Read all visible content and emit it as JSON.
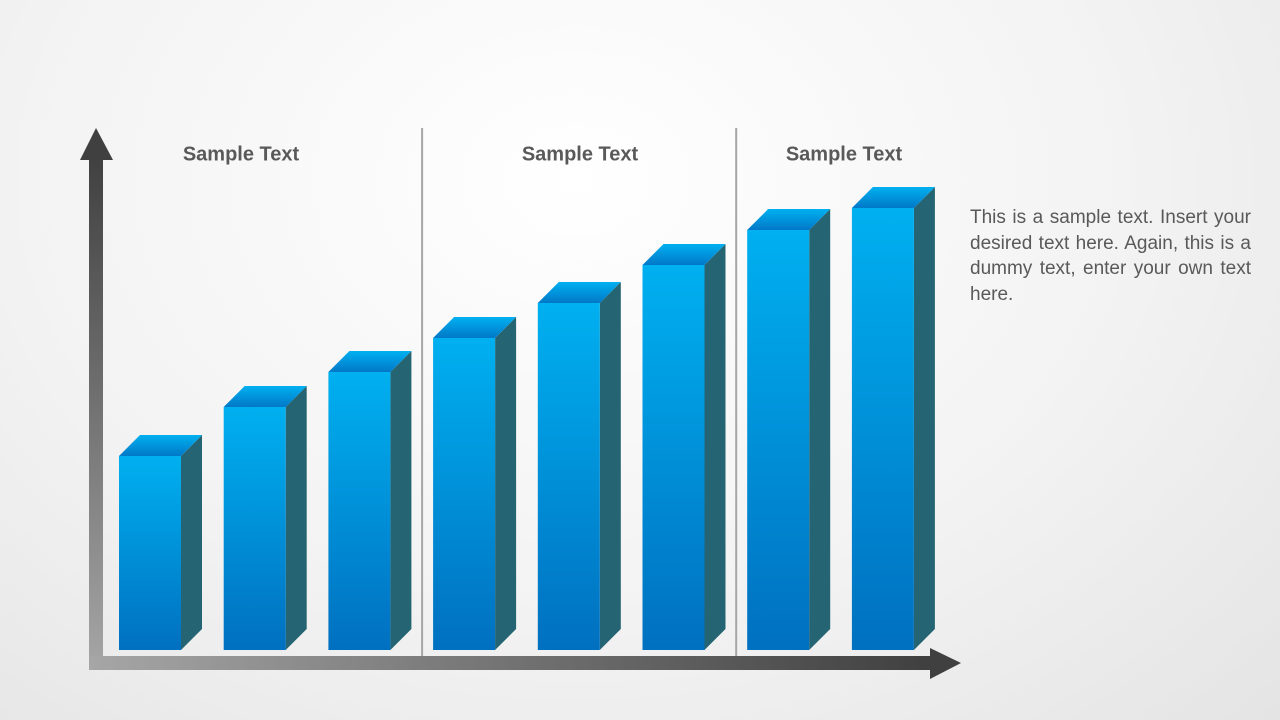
{
  "chart_data": {
    "type": "bar3d",
    "groups": [
      {
        "name": "Sample Text",
        "values": [
          194,
          243,
          278
        ]
      },
      {
        "name": "Sample Text",
        "values": [
          312,
          347,
          385
        ]
      },
      {
        "name": "Sample Text",
        "values": [
          420,
          442
        ]
      }
    ],
    "ylim": [
      0,
      520
    ],
    "color": "#00b0f0",
    "annotation": "This is a sample text. Insert your desired text here. Again, this is a dummy text, enter your own text here."
  }
}
